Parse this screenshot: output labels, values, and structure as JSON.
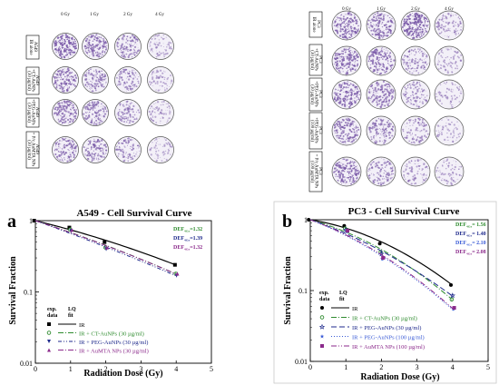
{
  "colony_a": {
    "doses": [
      "0 Gy",
      "1 Gy",
      "2 Gy",
      "4 Gy"
    ],
    "rows": [
      {
        "label": [
          "A549",
          "IR alone"
        ],
        "density": [
          0.95,
          0.75,
          0.55,
          0.25
        ]
      },
      {
        "label": [
          "A549",
          "+CT-AuNPs",
          "(30 µg/ml)"
        ],
        "density": [
          0.7,
          0.55,
          0.45,
          0.22
        ]
      },
      {
        "label": [
          "A549",
          "+PEG-AuNPs",
          "(30 µg/ml)"
        ],
        "density": [
          0.7,
          0.6,
          0.45,
          0.25
        ]
      },
      {
        "label": [
          "A549",
          "+ P/c AuMTA NPs",
          "(30 µg/ml)"
        ],
        "density": [
          0.65,
          0.6,
          0.45,
          0.2
        ]
      }
    ]
  },
  "colony_b": {
    "doses": [
      "0 Gy",
      "1 Gy",
      "2 Gy",
      "4 Gy"
    ],
    "rows": [
      {
        "label": [
          "PC3",
          "IR alone"
        ],
        "density": [
          0.85,
          0.75,
          1.0,
          0.4
        ]
      },
      {
        "label": [
          "PC3",
          "+CT-AuNPs",
          "(30 µg/ml)"
        ],
        "density": [
          0.85,
          0.8,
          0.5,
          0.25
        ]
      },
      {
        "label": [
          "PC3",
          "+PEG-AuNPs",
          "(30 µg/ml)"
        ],
        "density": [
          0.8,
          0.7,
          0.45,
          0.25
        ]
      },
      {
        "label": [
          "PC3",
          "+PEG-AuNPs",
          "(100 µg/ml)"
        ],
        "density": [
          0.75,
          0.6,
          0.4,
          0.2
        ]
      },
      {
        "label": [
          "PC3",
          "+ P/c AuMTA NPs",
          "(100 µg/ml)"
        ],
        "density": [
          0.85,
          0.55,
          0.35,
          0.25
        ]
      }
    ]
  },
  "colors": {
    "black": "#000000",
    "green": "#2e8b2e",
    "navy": "#1f2a8c",
    "blue": "#3a5bd6",
    "purple": "#8b2a8b",
    "dish": "#7a5aa8"
  },
  "chart_data": [
    {
      "panel_letter": "a",
      "type": "scatter",
      "title": "A549 - Cell Survival Curve",
      "xlabel": "Radiation Dose (Gy)",
      "ylabel": "Survival Fraction",
      "xlim": [
        0,
        5
      ],
      "ylim": [
        0.01,
        1
      ],
      "yscale": "log",
      "xticks": [
        "0",
        "1",
        "2",
        "3",
        "4",
        "5"
      ],
      "yticks": [
        "0.01",
        "0.1",
        "1"
      ],
      "legend_header": [
        "exp.",
        "data",
        "LQ",
        "fit"
      ],
      "def": [
        {
          "label": "DEF",
          "sub": "4Gy",
          "value": "=1.32",
          "color": "#2e8b2e"
        },
        {
          "label": "DEF",
          "sub": "4Gy",
          "value": "=1.39",
          "color": "#1f2a8c"
        },
        {
          "label": "DEF",
          "sub": "4Gy",
          "value": "=1.32",
          "color": "#8b2a8b"
        }
      ],
      "series": [
        {
          "name": "IR",
          "marker": "square",
          "color": "#000000",
          "dash": "",
          "x": [
            0,
            1,
            2,
            4
          ],
          "y": [
            1.0,
            0.8,
            0.5,
            0.24
          ]
        },
        {
          "name": "IR + CT-AuNPs (30 µg/ml)",
          "marker": "circle-open",
          "color": "#2e8b2e",
          "dash": "6,2,1,2",
          "x": [
            0,
            1,
            2,
            4
          ],
          "y": [
            1.0,
            0.75,
            0.42,
            0.18
          ]
        },
        {
          "name": "IR + PEG-AuNPs (30 µg/ml)",
          "marker": "triangle-down",
          "color": "#1f2a8c",
          "dash": "4,2,1,2,1,2",
          "x": [
            0,
            1,
            2,
            4
          ],
          "y": [
            1.0,
            0.72,
            0.4,
            0.17
          ]
        },
        {
          "name": "IR + AuMTA NPs (30 µg/ml)",
          "marker": "triangle-up",
          "color": "#8b2a8b",
          "dash": "6,2,1,2",
          "x": [
            0,
            1,
            2,
            4
          ],
          "y": [
            1.0,
            0.74,
            0.42,
            0.18
          ]
        }
      ]
    },
    {
      "panel_letter": "b",
      "type": "scatter",
      "title": "PC3 - Cell Survival Curve",
      "xlabel": "Radiation Dose (Gy)",
      "ylabel": "Survival Fraction",
      "xlim": [
        0,
        5
      ],
      "ylim": [
        0.01,
        1
      ],
      "yscale": "log",
      "xticks": [
        "0",
        "1",
        "2",
        "3",
        "4",
        "5"
      ],
      "yticks": [
        "0.01",
        "0.1",
        "1"
      ],
      "legend_header": [
        "exp.",
        "data",
        "LQ",
        "fit"
      ],
      "def": [
        {
          "label": "DEF",
          "sub": "4Gy",
          "value": "= 1.56",
          "color": "#2e8b2e"
        },
        {
          "label": "DEF",
          "sub": "4Gy",
          "value": "= 1.40",
          "color": "#1f2a8c"
        },
        {
          "label": "DEF",
          "sub": "4Gy",
          "value": "= 2.10",
          "color": "#3a5bd6"
        },
        {
          "label": "DEF",
          "sub": "4Gy",
          "value": "= 2.08",
          "color": "#8b2a8b"
        }
      ],
      "series": [
        {
          "name": "IR",
          "marker": "circle",
          "color": "#000000",
          "dash": "",
          "x": [
            0,
            1,
            2,
            4
          ],
          "y": [
            1.0,
            0.82,
            0.46,
            0.12
          ]
        },
        {
          "name": "IR + CT-AuNPs (30 µg/ml)",
          "marker": "circle-open",
          "color": "#2e8b2e",
          "dash": "6,2,1,2",
          "x": [
            0,
            1,
            2,
            4
          ],
          "y": [
            1.0,
            0.75,
            0.35,
            0.075
          ]
        },
        {
          "name": "IR + PEG-AuNPs (30 µg/ml)",
          "marker": "star-open",
          "color": "#1f2a8c",
          "dash": "6,3",
          "x": [
            0,
            1,
            2,
            4
          ],
          "y": [
            1.0,
            0.72,
            0.33,
            0.085
          ]
        },
        {
          "name": "IR + PEG-AuNPs (100 µg/ml)",
          "marker": "star",
          "color": "#3a5bd6",
          "dash": "1,2",
          "x": [
            0,
            1,
            2,
            4
          ],
          "y": [
            1.0,
            0.68,
            0.28,
            0.055
          ]
        },
        {
          "name": "IR + AuMTA NPs (100 µg/ml)",
          "marker": "square",
          "color": "#8b2a8b",
          "dash": "6,2,1,2,1,2",
          "x": [
            0,
            1,
            2,
            4
          ],
          "y": [
            1.0,
            0.7,
            0.29,
            0.057
          ]
        }
      ]
    }
  ]
}
